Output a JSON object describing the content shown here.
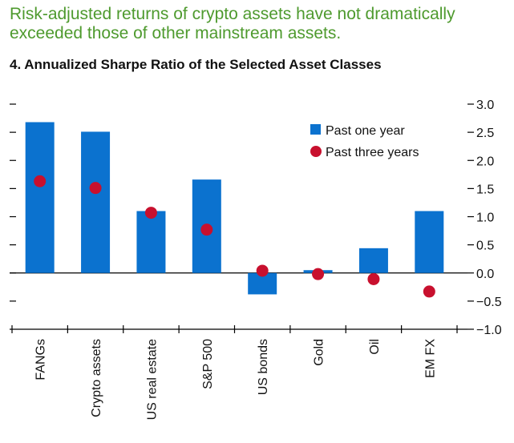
{
  "headline": "Risk-adjusted returns of crypto assets have not dramatically exceeded those of other mainstream assets.",
  "colors": {
    "bar": "#0b72cf",
    "dot": "#c8102e",
    "axis": "#000000",
    "headline": "#4e9a2e"
  },
  "chart_data": {
    "type": "bar",
    "title": "4. Annualized Sharpe Ratio of the Selected Asset Classes",
    "categories": [
      "FANGs",
      "Crypto assets",
      "US real estate",
      "S&P 500",
      "US bonds",
      "Gold",
      "Oil",
      "EM FX"
    ],
    "series": [
      {
        "name": "Past one year",
        "kind": "bar",
        "values": [
          2.68,
          2.51,
          1.1,
          1.66,
          -0.38,
          0.05,
          0.44,
          1.1
        ]
      },
      {
        "name": "Past three years",
        "kind": "dot",
        "values": [
          1.63,
          1.51,
          1.07,
          0.77,
          0.04,
          -0.02,
          -0.11,
          -0.33
        ]
      }
    ],
    "ylim": [
      -1.0,
      3.0
    ],
    "yticks": [
      3.0,
      2.5,
      2.0,
      1.5,
      1.0,
      0.5,
      0.0,
      -0.5,
      -1.0
    ],
    "ytick_labels": [
      "3.0",
      "2.5",
      "2.0",
      "1.5",
      "1.0",
      "0.5",
      "0.0",
      "−0.5",
      "−1.0"
    ],
    "xlabel": "",
    "ylabel": "",
    "legend_position": "top-right"
  }
}
